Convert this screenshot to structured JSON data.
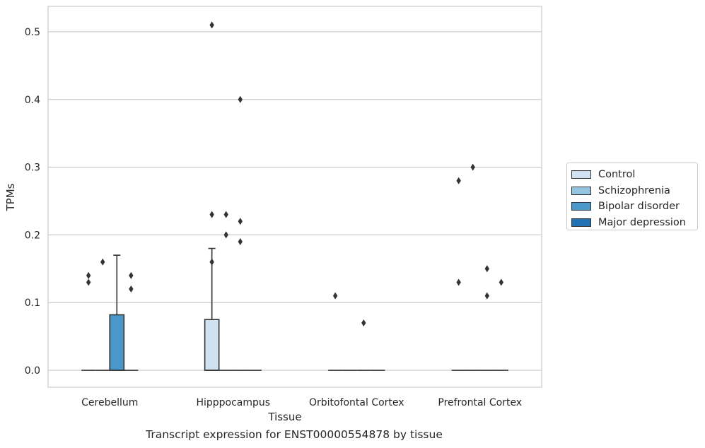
{
  "chart_data": {
    "type": "boxplot",
    "xlabel": "Tissue",
    "ylabel": "TPMs",
    "caption": "Transcript expression for ENST00000554878 by tissue",
    "ylim": [
      -0.025,
      0.5375
    ],
    "yticks": [
      0.0,
      0.1,
      0.2,
      0.3,
      0.4,
      0.5
    ],
    "ytick_labels": [
      "0.0",
      "0.1",
      "0.2",
      "0.3",
      "0.4",
      "0.5"
    ],
    "grid": "horizontal",
    "legend_position": "right",
    "categories": [
      "Cerebellum",
      "Hipppocampus",
      "Orbitofontal Cortex",
      "Prefrontal Cortex"
    ],
    "series": [
      {
        "name": "Control",
        "color": "#d0e1f2",
        "boxes": [
          {
            "q1": 0,
            "median": 0,
            "q3": 0,
            "whisker_low": 0,
            "whisker_high": 0,
            "outliers": [
              0.14,
              0.13
            ]
          },
          {
            "q1": 0,
            "median": 0,
            "q3": 0.075,
            "whisker_low": 0,
            "whisker_high": 0.18,
            "outliers": [
              0.51,
              0.23,
              0.16
            ]
          },
          {
            "q1": 0,
            "median": 0,
            "q3": 0,
            "whisker_low": 0,
            "whisker_high": 0,
            "outliers": [
              0.11
            ]
          },
          {
            "q1": 0,
            "median": 0,
            "q3": 0,
            "whisker_low": 0,
            "whisker_high": 0,
            "outliers": [
              0.28,
              0.13
            ]
          }
        ]
      },
      {
        "name": "Schizophrenia",
        "color": "#94c4df",
        "boxes": [
          {
            "q1": 0,
            "median": 0,
            "q3": 0,
            "whisker_low": 0,
            "whisker_high": 0,
            "outliers": [
              0.16
            ]
          },
          {
            "q1": 0,
            "median": 0,
            "q3": 0,
            "whisker_low": 0,
            "whisker_high": 0,
            "outliers": [
              0.23,
              0.2
            ]
          },
          {
            "q1": 0,
            "median": 0,
            "q3": 0,
            "whisker_low": 0,
            "whisker_high": 0,
            "outliers": []
          },
          {
            "q1": 0,
            "median": 0,
            "q3": 0,
            "whisker_low": 0,
            "whisker_high": 0,
            "outliers": [
              0.3
            ]
          }
        ]
      },
      {
        "name": "Bipolar disorder",
        "color": "#4a98c9",
        "boxes": [
          {
            "q1": 0,
            "median": 0,
            "q3": 0.082,
            "whisker_low": 0,
            "whisker_high": 0.17,
            "outliers": []
          },
          {
            "q1": 0,
            "median": 0,
            "q3": 0,
            "whisker_low": 0,
            "whisker_high": 0,
            "outliers": [
              0.4,
              0.22,
              0.19
            ]
          },
          {
            "q1": 0,
            "median": 0,
            "q3": 0,
            "whisker_low": 0,
            "whisker_high": 0,
            "outliers": [
              0.07
            ]
          },
          {
            "q1": 0,
            "median": 0,
            "q3": 0,
            "whisker_low": 0,
            "whisker_high": 0,
            "outliers": [
              0.15,
              0.11
            ]
          }
        ]
      },
      {
        "name": "Major depression",
        "color": "#2171b5",
        "boxes": [
          {
            "q1": 0,
            "median": 0,
            "q3": 0,
            "whisker_low": 0,
            "whisker_high": 0,
            "outliers": [
              0.14,
              0.12
            ]
          },
          {
            "q1": 0,
            "median": 0,
            "q3": 0,
            "whisker_low": 0,
            "whisker_high": 0,
            "outliers": []
          },
          {
            "q1": 0,
            "median": 0,
            "q3": 0,
            "whisker_low": 0,
            "whisker_high": 0,
            "outliers": []
          },
          {
            "q1": 0,
            "median": 0,
            "q3": 0,
            "whisker_low": 0,
            "whisker_high": 0,
            "outliers": [
              0.13
            ]
          }
        ]
      }
    ]
  }
}
